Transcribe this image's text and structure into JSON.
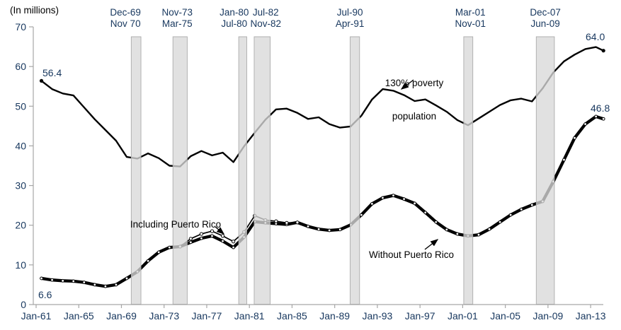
{
  "header": {
    "units_label": "(In millions)"
  },
  "colors": {
    "background": "#ffffff",
    "axis": "#A6A6A6",
    "tick_label": "#17375E",
    "annotation": "#000000",
    "line": "#000000",
    "band_fill": "#D9D9D9",
    "band_border": "#ABABAB",
    "marker_fill": "#ffffff"
  },
  "axes": {
    "y": {
      "min": 0,
      "max": 70,
      "step": 10,
      "tick_values": [
        0,
        10,
        20,
        30,
        40,
        50,
        60,
        70
      ]
    },
    "x": {
      "tick_years": [
        1961,
        1965,
        1969,
        1973,
        1977,
        1981,
        1985,
        1989,
        1993,
        1997,
        2001,
        2005,
        2009,
        2013
      ],
      "tick_labels": [
        "Jan-61",
        "Jan-65",
        "Jan-69",
        "Jan-73",
        "Jan-77",
        "Jan-81",
        "Jan-85",
        "Jan-89",
        "Jan-93",
        "Jan-97",
        "Jan-01",
        "Jan-05",
        "Jan-09",
        "Jan-13"
      ]
    }
  },
  "recessions": [
    {
      "start_label": "Dec-69",
      "end_label": "Nov 70",
      "start": 1969.92,
      "end": 1970.83,
      "label_dx": -15
    },
    {
      "start_label": "Nov-73",
      "end_label": "Mar-75",
      "start": 1973.83,
      "end": 1975.17,
      "label_dx": -4
    },
    {
      "start_label": "Jan-80",
      "end_label": "Jul-80",
      "start": 1980.0,
      "end": 1980.75,
      "label_dx": -12
    },
    {
      "start_label": "Jul-82",
      "end_label": "Nov-82",
      "start": 1981.45,
      "end": 1982.95,
      "label_dx": 5
    },
    {
      "start_label": "Jul-90",
      "end_label": "Apr-91",
      "start": 1990.45,
      "end": 1991.33,
      "label_dx": -7
    },
    {
      "start_label": "Mar-01",
      "end_label": "Nov-01",
      "start": 2001.1,
      "end": 2001.95,
      "label_dx": 3
    },
    {
      "start_label": "Dec-07",
      "end_label": "Jun-09",
      "start": 2007.9,
      "end": 2009.6,
      "label_dx": 0
    }
  ],
  "annotations": {
    "poverty_line1": "130% poverty",
    "poverty_line2": "population",
    "including_pr": "Including Puerto Rico",
    "without_pr": "Without Puerto Rico"
  },
  "point_labels": {
    "poverty_start": "56.4",
    "poverty_end": "64.0",
    "snap_start": "6.6",
    "snap_end": "46.8"
  },
  "chart_data": {
    "type": "line",
    "x_unit": "year",
    "x_range": [
      1961,
      2014
    ],
    "ylim": [
      0,
      70
    ],
    "ylabel": "(In millions)",
    "grid": false,
    "legend": "inline-annotations",
    "series": [
      {
        "name": "130% poverty population",
        "style": "poverty",
        "points": [
          [
            1961,
            56.4
          ],
          [
            1962,
            54.3
          ],
          [
            1963,
            53.2
          ],
          [
            1964,
            52.7
          ],
          [
            1965,
            49.7
          ],
          [
            1966,
            46.7
          ],
          [
            1967,
            44.0
          ],
          [
            1968,
            41.3
          ],
          [
            1969,
            37.2
          ],
          [
            1970,
            36.8
          ],
          [
            1971,
            38.1
          ],
          [
            1972,
            36.9
          ],
          [
            1973,
            35.0
          ],
          [
            1974,
            34.8
          ],
          [
            1975,
            37.4
          ],
          [
            1976,
            38.7
          ],
          [
            1977,
            37.6
          ],
          [
            1978,
            38.3
          ],
          [
            1979,
            35.9
          ],
          [
            1980,
            39.9
          ],
          [
            1981,
            43.3
          ],
          [
            1982,
            46.6
          ],
          [
            1983,
            49.2
          ],
          [
            1984,
            49.4
          ],
          [
            1985,
            48.3
          ],
          [
            1986,
            46.8
          ],
          [
            1987,
            47.2
          ],
          [
            1988,
            45.5
          ],
          [
            1989,
            44.6
          ],
          [
            1990,
            44.9
          ],
          [
            1991,
            47.6
          ],
          [
            1992,
            51.7
          ],
          [
            1993,
            54.3
          ],
          [
            1994,
            53.9
          ],
          [
            1995,
            52.8
          ],
          [
            1996,
            51.3
          ],
          [
            1997,
            51.7
          ],
          [
            1998,
            50.2
          ],
          [
            1999,
            48.6
          ],
          [
            2000,
            46.5
          ],
          [
            2001,
            45.2
          ],
          [
            2002,
            46.9
          ],
          [
            2003,
            48.6
          ],
          [
            2004,
            50.3
          ],
          [
            2005,
            51.5
          ],
          [
            2006,
            51.9
          ],
          [
            2007,
            51.2
          ],
          [
            2008,
            54.5
          ],
          [
            2009,
            58.5
          ],
          [
            2010,
            61.3
          ],
          [
            2011,
            63.0
          ],
          [
            2012,
            64.4
          ],
          [
            2013,
            64.9
          ],
          [
            2013.7,
            64.0
          ]
        ]
      },
      {
        "name": "Including Puerto Rico",
        "style": "thin",
        "points": [
          [
            1974,
            14.6
          ],
          [
            1975,
            16.6
          ],
          [
            1976,
            17.8
          ],
          [
            1977,
            18.5
          ],
          [
            1978,
            17.3
          ],
          [
            1979,
            15.9
          ],
          [
            1980,
            18.3
          ],
          [
            1981,
            22.4
          ],
          [
            1982,
            21.3
          ],
          [
            1983,
            21.0
          ],
          [
            1984,
            20.6
          ],
          [
            1985,
            20.7
          ]
        ]
      },
      {
        "name": "Without Puerto Rico",
        "style": "thick",
        "points": [
          [
            1961,
            6.6
          ],
          [
            1962,
            6.2
          ],
          [
            1963,
            6.0
          ],
          [
            1964,
            5.9
          ],
          [
            1965,
            5.6
          ],
          [
            1966,
            5.0
          ],
          [
            1967,
            4.6
          ],
          [
            1968,
            5.0
          ],
          [
            1969,
            6.6
          ],
          [
            1970,
            8.3
          ],
          [
            1971,
            11.0
          ],
          [
            1972,
            13.2
          ],
          [
            1973,
            14.4
          ],
          [
            1974,
            14.6
          ],
          [
            1975,
            15.7
          ],
          [
            1976,
            16.7
          ],
          [
            1977,
            17.3
          ],
          [
            1978,
            16.0
          ],
          [
            1979,
            14.4
          ],
          [
            1980,
            17.0
          ],
          [
            1981,
            20.9
          ],
          [
            1982,
            20.6
          ],
          [
            1983,
            20.4
          ],
          [
            1984,
            20.2
          ],
          [
            1985,
            20.7
          ],
          [
            1986,
            19.7
          ],
          [
            1987,
            19.0
          ],
          [
            1988,
            18.7
          ],
          [
            1989,
            18.9
          ],
          [
            1990,
            20.1
          ],
          [
            1991,
            22.6
          ],
          [
            1992,
            25.4
          ],
          [
            1993,
            26.9
          ],
          [
            1994,
            27.5
          ],
          [
            1995,
            26.6
          ],
          [
            1996,
            25.5
          ],
          [
            1997,
            23.2
          ],
          [
            1998,
            20.8
          ],
          [
            1999,
            18.9
          ],
          [
            2000,
            17.8
          ],
          [
            2001,
            17.3
          ],
          [
            2002,
            17.6
          ],
          [
            2003,
            19.0
          ],
          [
            2004,
            20.8
          ],
          [
            2005,
            22.6
          ],
          [
            2006,
            24.0
          ],
          [
            2007,
            25.1
          ],
          [
            2008,
            26.0
          ],
          [
            2009,
            31.0
          ],
          [
            2010,
            36.5
          ],
          [
            2011,
            42.0
          ],
          [
            2012,
            45.5
          ],
          [
            2013,
            47.4
          ],
          [
            2013.7,
            46.8
          ]
        ]
      }
    ]
  }
}
